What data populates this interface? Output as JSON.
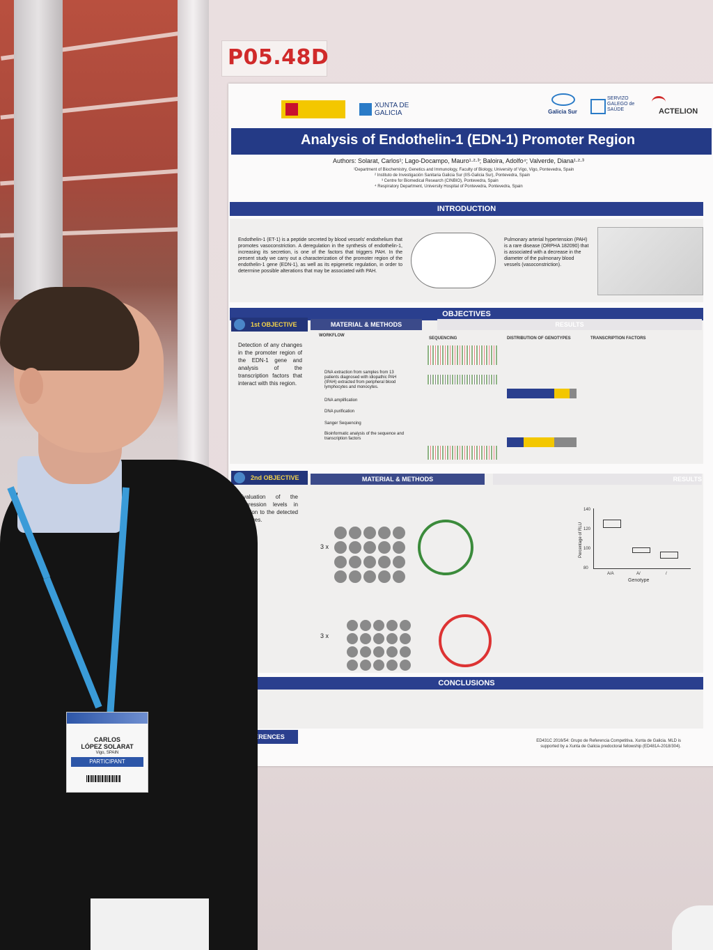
{
  "poster_code": "P05.48D",
  "logos": {
    "xunta": "XUNTA DE GALICIA",
    "galicia_sur": "Galicia Sur",
    "sergas": "SERVIZO GALEGO de SAÚDE",
    "actelion": "ACTELION"
  },
  "poster": {
    "title": "Analysis of Endothelin-1 (EDN-1) Promoter Region",
    "authors": "Authors: Solarat, Carlos¹; Lago-Docampo, Mauro¹·²·³; Baloira, Adolfo⁴; Valverde, Diana¹·²·³",
    "affiliations": [
      "¹Department of Biochemistry, Genetics and Immunology, Faculty of Biology, University of Vigo, Vigo, Pontevedra, Spain",
      "² Instituto de Investigación Sanitaria Galicia Sur (IIS-Galicia Sur), Pontevedra, Spain",
      "³ Centre for Biomedical Research (CINBIO), Pontevedra, Spain",
      "⁴ Respiratory Department, University Hospital of Pontevedra, Pontevedra, Spain"
    ],
    "introduction_heading": "INTRODUCTION",
    "introduction_text": "Endothelin-1 (ET-1) is a peptide secreted by blood vessels' endothelium that promotes vasoconstriction. A deregulation in the synthesis of endothelin-1, increasing its secretion, is one of the factors that triggers PAH. In the present study we carry out a characterization of the promoter region of the endothelin-1 gene (EDN-1), as well as its epigenetic regulation, in order to determine possible alterations that may be associated with PAH.",
    "pah_text": "Pulmonary arterial hypertension (PAH) is a rare disease (ORPHA 182090) that is associated with a decrease in the diameter of the pulmonary blood vessels (vasoconstriction).",
    "objectives_heading": "OBJECTIVES",
    "objective1_tag": "1st OBJECTIVE",
    "objective1_text": "Detection of any changes in the promoter region of the EDN-1 gene and analysis of the transcription factors that interact with this region.",
    "materials_heading": "MATERIAL & METHODS",
    "results_heading": "RESULTS",
    "workflow_label": "WORKFLOW",
    "workflow_steps": [
      "DNA extraction from samples from 13 patients diagnosed with idiopathic PAH (IPAH) extracted from peripheral blood lymphocytes and monocytes.",
      "DNA amplification",
      "DNA purification",
      "Sanger Sequencing",
      "Bioinformatic analysis of the sequence and transcription factors"
    ],
    "sequencing_label": "SEQUENCING",
    "distribution_label": "DISTRIBUTION OF GENOTYPES",
    "transcription_label": "TRANSCRIPTION FACTORS",
    "objective2_tag": "2nd OBJECTIVE",
    "objective2_text": "Evaluation of the expression levels in relation to the detected changes.",
    "plate_label": "3 x",
    "chart_ylabel": "Percentage of RLU",
    "chart_xlabel": "Genotype",
    "chart_ticks": [
      "140",
      "120",
      "100",
      "80"
    ],
    "chart_categories": [
      "A/A",
      "A/",
      "/"
    ],
    "conclusions_heading": "CONCLUSIONS",
    "references_heading": "REFERENCES",
    "funding_text": "ED431C 2016/54: Grupo de Referencia Competitiva. Xunta de Galicia. MLD is supported by a Xunta de Galicia predoctoral fellowship (ED481A-2018/304)."
  },
  "badge": {
    "name_line1": "CARLOS",
    "name_line2": "LÓPEZ SOLARAT",
    "city": "Vigo, SPAIN",
    "role": "PARTICIPANT"
  }
}
